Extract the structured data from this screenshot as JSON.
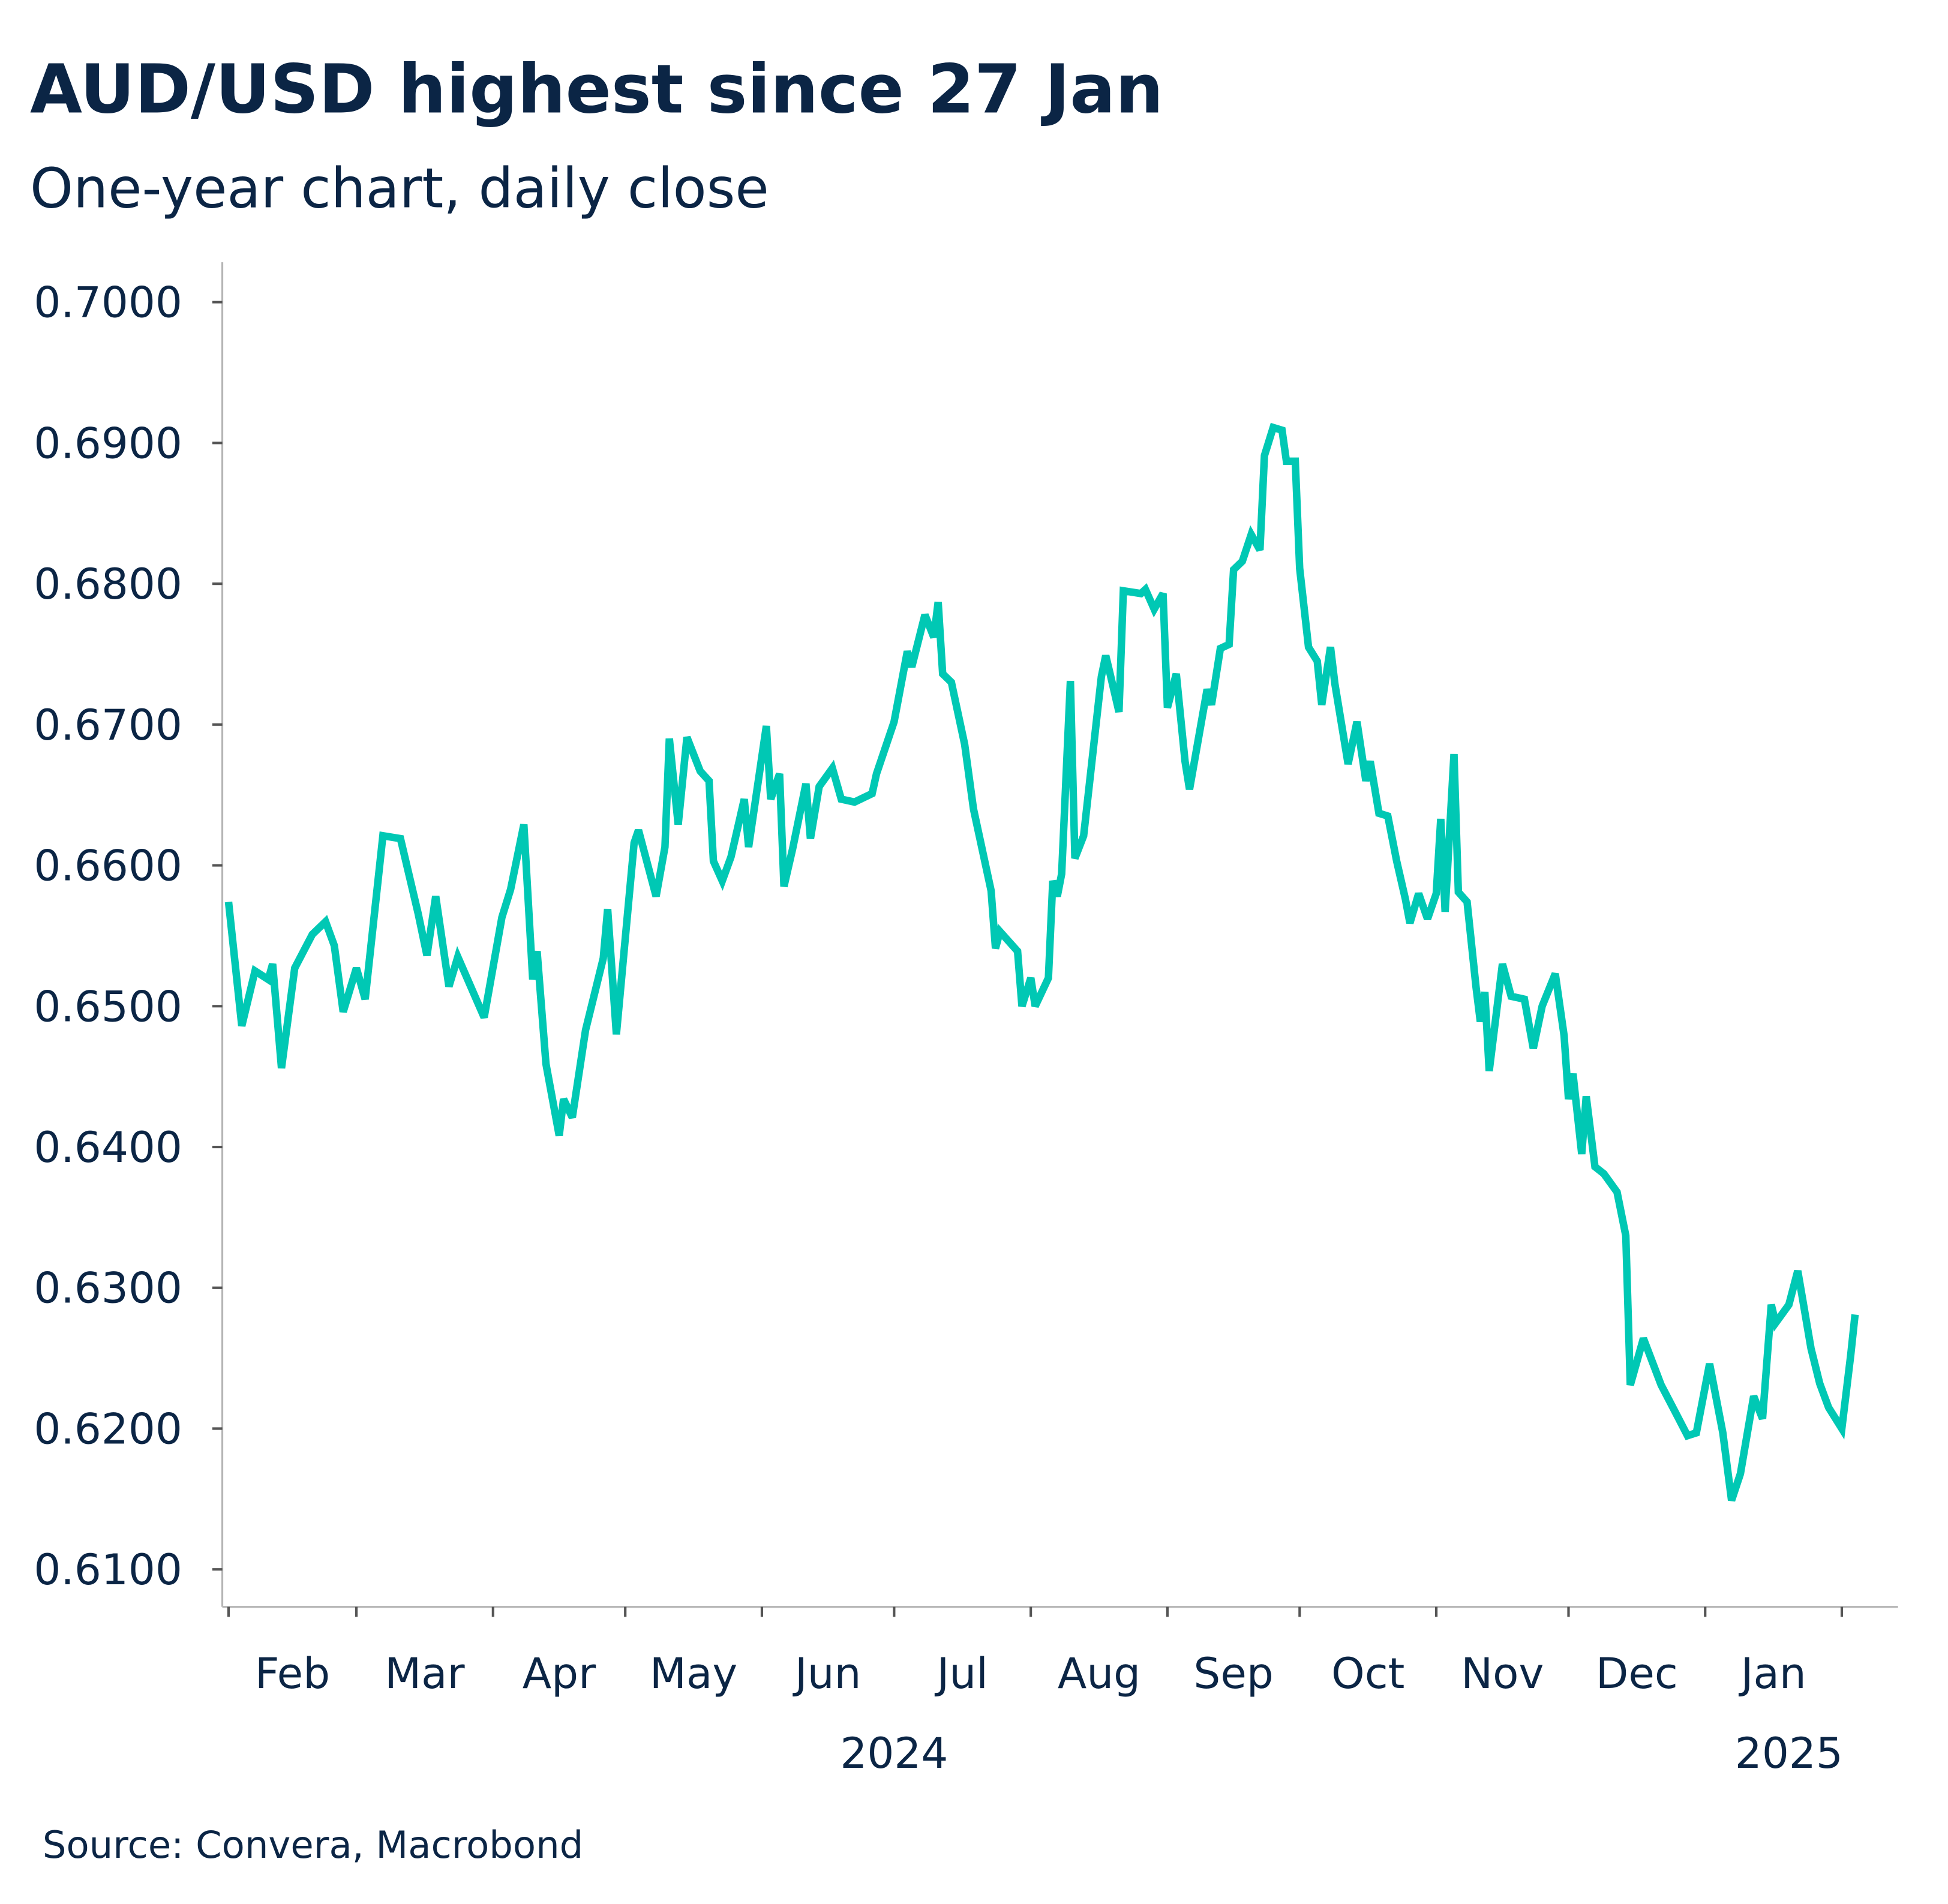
{
  "title": "AUD/USD highest since 27 Jan",
  "subtitle": "One-year chart, daily close",
  "source": "Source: Convera, Macrobond",
  "colors": {
    "line": "#00c8b4",
    "text": "#0b2545",
    "axis": "#b5b5b5"
  },
  "chart_data": {
    "type": "line",
    "title": "AUD/USD highest since 27 Jan",
    "subtitle": "One-year chart, daily close",
    "xlabel": "",
    "ylabel": "",
    "ylim": [
      0.61,
      0.7
    ],
    "xlim": [
      "2024-02-01",
      "2025-02-04"
    ],
    "grid": false,
    "legend": "none",
    "y_ticks": [
      "0.7000",
      "0.6900",
      "0.6800",
      "0.6700",
      "0.6600",
      "0.6500",
      "0.6400",
      "0.6300",
      "0.6200",
      "0.6100"
    ],
    "x_ticks": [
      {
        "label": "Feb",
        "start": "2024-02-01",
        "end": "2024-03-01"
      },
      {
        "label": "Mar",
        "start": "2024-03-01",
        "end": "2024-04-01"
      },
      {
        "label": "Apr",
        "start": "2024-04-01",
        "end": "2024-05-01"
      },
      {
        "label": "May",
        "start": "2024-05-01",
        "end": "2024-06-01"
      },
      {
        "label": "Jun",
        "start": "2024-06-01",
        "end": "2024-07-01"
      },
      {
        "label": "Jul",
        "start": "2024-07-01",
        "end": "2024-08-01"
      },
      {
        "label": "Aug",
        "start": "2024-08-01",
        "end": "2024-09-01"
      },
      {
        "label": "Sep",
        "start": "2024-09-01",
        "end": "2024-10-01"
      },
      {
        "label": "Oct",
        "start": "2024-10-01",
        "end": "2024-11-01"
      },
      {
        "label": "Nov",
        "start": "2024-11-01",
        "end": "2024-12-01"
      },
      {
        "label": "Dec",
        "start": "2024-12-01",
        "end": "2025-01-01"
      },
      {
        "label": "Jan",
        "start": "2025-01-01",
        "end": "2025-02-01"
      }
    ],
    "year_labels": [
      {
        "label": "2024",
        "center": "2024-07-01"
      },
      {
        "label": "2025",
        "center": "2025-01-20"
      }
    ],
    "series": [
      {
        "points": [
          [
            "2024-02-01",
            0.6574
          ],
          [
            "2024-02-04",
            0.6486
          ],
          [
            "2024-02-07",
            0.6525
          ],
          [
            "2024-02-10",
            0.6519
          ],
          [
            "2024-02-11",
            0.653
          ],
          [
            "2024-02-13",
            0.6456
          ],
          [
            "2024-02-16",
            0.6527
          ],
          [
            "2024-02-20",
            0.6551
          ],
          [
            "2024-02-23",
            0.656
          ],
          [
            "2024-02-25",
            0.6543
          ],
          [
            "2024-02-27",
            0.6496
          ],
          [
            "2024-03-01",
            0.6527
          ],
          [
            "2024-03-03",
            0.6505
          ],
          [
            "2024-03-07",
            0.6621
          ],
          [
            "2024-03-11",
            0.6619
          ],
          [
            "2024-03-15",
            0.6566
          ],
          [
            "2024-03-17",
            0.6536
          ],
          [
            "2024-03-19",
            0.6578
          ],
          [
            "2024-03-22",
            0.6514
          ],
          [
            "2024-03-24",
            0.6535
          ],
          [
            "2024-03-30",
            0.6492
          ],
          [
            "2024-04-03",
            0.6563
          ],
          [
            "2024-04-05",
            0.6583
          ],
          [
            "2024-04-08",
            0.6629
          ],
          [
            "2024-04-10",
            0.6519
          ],
          [
            "2024-04-11",
            0.6539
          ],
          [
            "2024-04-13",
            0.6459
          ],
          [
            "2024-04-16",
            0.6408
          ],
          [
            "2024-04-17",
            0.6434
          ],
          [
            "2024-04-19",
            0.6421
          ],
          [
            "2024-04-22",
            0.6483
          ],
          [
            "2024-04-26",
            0.6534
          ],
          [
            "2024-04-27",
            0.6569
          ],
          [
            "2024-04-29",
            0.648
          ],
          [
            "2024-05-03",
            0.6616
          ],
          [
            "2024-05-04",
            0.6625
          ],
          [
            "2024-05-08",
            0.6578
          ],
          [
            "2024-05-10",
            0.6613
          ],
          [
            "2024-05-11",
            0.669
          ],
          [
            "2024-05-13",
            0.6629
          ],
          [
            "2024-05-15",
            0.6691
          ],
          [
            "2024-05-18",
            0.6667
          ],
          [
            "2024-05-20",
            0.666
          ],
          [
            "2024-05-21",
            0.6603
          ],
          [
            "2024-05-23",
            0.6589
          ],
          [
            "2024-05-25",
            0.6606
          ],
          [
            "2024-05-28",
            0.6647
          ],
          [
            "2024-05-29",
            0.6613
          ],
          [
            "2024-06-02",
            0.6699
          ],
          [
            "2024-06-03",
            0.6647
          ],
          [
            "2024-06-05",
            0.6665
          ],
          [
            "2024-06-06",
            0.6585
          ],
          [
            "2024-06-08",
            0.6612
          ],
          [
            "2024-06-11",
            0.6658
          ],
          [
            "2024-06-12",
            0.6619
          ],
          [
            "2024-06-14",
            0.6656
          ],
          [
            "2024-06-17",
            0.6669
          ],
          [
            "2024-06-19",
            0.6647
          ],
          [
            "2024-06-22",
            0.6645
          ],
          [
            "2024-06-26",
            0.6651
          ],
          [
            "2024-06-27",
            0.6665
          ],
          [
            "2024-07-01",
            0.6702
          ],
          [
            "2024-07-04",
            0.6752
          ],
          [
            "2024-07-05",
            0.6741
          ],
          [
            "2024-07-08",
            0.6778
          ],
          [
            "2024-07-10",
            0.6762
          ],
          [
            "2024-07-11",
            0.6787
          ],
          [
            "2024-07-12",
            0.6736
          ],
          [
            "2024-07-14",
            0.673
          ],
          [
            "2024-07-17",
            0.6686
          ],
          [
            "2024-07-19",
            0.664
          ],
          [
            "2024-07-23",
            0.6582
          ],
          [
            "2024-07-24",
            0.6541
          ],
          [
            "2024-07-25",
            0.6553
          ],
          [
            "2024-07-29",
            0.6539
          ],
          [
            "2024-07-30",
            0.65
          ],
          [
            "2024-08-01",
            0.652
          ],
          [
            "2024-08-02",
            0.65
          ],
          [
            "2024-08-05",
            0.652
          ],
          [
            "2024-08-06",
            0.6589
          ],
          [
            "2024-08-07",
            0.6578
          ],
          [
            "2024-08-08",
            0.6594
          ],
          [
            "2024-08-10",
            0.6731
          ],
          [
            "2024-08-11",
            0.6605
          ],
          [
            "2024-08-13",
            0.6621
          ],
          [
            "2024-08-17",
            0.6734
          ],
          [
            "2024-08-18",
            0.6749
          ],
          [
            "2024-08-19",
            0.6736
          ],
          [
            "2024-08-21",
            0.6709
          ],
          [
            "2024-08-22",
            0.6795
          ],
          [
            "2024-08-26",
            0.6793
          ],
          [
            "2024-08-27",
            0.6796
          ],
          [
            "2024-08-29",
            0.6782
          ],
          [
            "2024-08-31",
            0.6793
          ],
          [
            "2024-09-01",
            0.6712
          ],
          [
            "2024-09-03",
            0.6736
          ],
          [
            "2024-09-05",
            0.6674
          ],
          [
            "2024-09-06",
            0.6654
          ],
          [
            "2024-09-10",
            0.6725
          ],
          [
            "2024-09-11",
            0.6714
          ],
          [
            "2024-09-13",
            0.6754
          ],
          [
            "2024-09-15",
            0.6757
          ],
          [
            "2024-09-16",
            0.681
          ],
          [
            "2024-09-18",
            0.6816
          ],
          [
            "2024-09-20",
            0.6835
          ],
          [
            "2024-09-22",
            0.6824
          ],
          [
            "2024-09-23",
            0.6891
          ],
          [
            "2024-09-25",
            0.6911
          ],
          [
            "2024-09-27",
            0.6909
          ],
          [
            "2024-09-28",
            0.6887
          ],
          [
            "2024-09-30",
            0.6887
          ],
          [
            "2024-10-01",
            0.6811
          ],
          [
            "2024-10-03",
            0.6755
          ],
          [
            "2024-10-05",
            0.6745
          ],
          [
            "2024-10-06",
            0.6714
          ],
          [
            "2024-10-08",
            0.6755
          ],
          [
            "2024-10-09",
            0.6729
          ],
          [
            "2024-10-12",
            0.6672
          ],
          [
            "2024-10-14",
            0.6702
          ],
          [
            "2024-10-16",
            0.666
          ],
          [
            "2024-10-17",
            0.6674
          ],
          [
            "2024-10-19",
            0.6637
          ],
          [
            "2024-10-21",
            0.6635
          ],
          [
            "2024-10-23",
            0.6603
          ],
          [
            "2024-10-25",
            0.6576
          ],
          [
            "2024-10-26",
            0.6559
          ],
          [
            "2024-10-28",
            0.658
          ],
          [
            "2024-10-30",
            0.6562
          ],
          [
            "2024-11-01",
            0.658
          ],
          [
            "2024-11-02",
            0.6633
          ],
          [
            "2024-11-03",
            0.6567
          ],
          [
            "2024-11-05",
            0.6679
          ],
          [
            "2024-11-06",
            0.6581
          ],
          [
            "2024-11-08",
            0.6574
          ],
          [
            "2024-11-10",
            0.6514
          ],
          [
            "2024-11-11",
            0.6489
          ],
          [
            "2024-11-12",
            0.651
          ],
          [
            "2024-11-13",
            0.6454
          ],
          [
            "2024-11-16",
            0.653
          ],
          [
            "2024-11-18",
            0.6507
          ],
          [
            "2024-11-21",
            0.6505
          ],
          [
            "2024-11-23",
            0.647
          ],
          [
            "2024-11-25",
            0.65
          ],
          [
            "2024-11-28",
            0.6523
          ],
          [
            "2024-11-30",
            0.6479
          ],
          [
            "2024-12-01",
            0.6434
          ],
          [
            "2024-12-02",
            0.6452
          ],
          [
            "2024-12-04",
            0.6395
          ],
          [
            "2024-12-05",
            0.6436
          ],
          [
            "2024-12-07",
            0.6386
          ],
          [
            "2024-12-09",
            0.6381
          ],
          [
            "2024-12-12",
            0.6368
          ],
          [
            "2024-12-14",
            0.6337
          ],
          [
            "2024-12-15",
            0.6231
          ],
          [
            "2024-12-18",
            0.6264
          ],
          [
            "2024-12-22",
            0.6231
          ],
          [
            "2024-12-25",
            0.6213
          ],
          [
            "2024-12-28",
            0.6195
          ],
          [
            "2024-12-30",
            0.6197
          ],
          [
            "2025-01-02",
            0.6246
          ],
          [
            "2025-01-05",
            0.6197
          ],
          [
            "2025-01-07",
            0.6149
          ],
          [
            "2025-01-09",
            0.6168
          ],
          [
            "2025-01-12",
            0.6223
          ],
          [
            "2025-01-14",
            0.6207
          ],
          [
            "2025-01-16",
            0.6288
          ],
          [
            "2025-01-17",
            0.6275
          ],
          [
            "2025-01-20",
            0.6288
          ],
          [
            "2025-01-22",
            0.6312
          ],
          [
            "2025-01-23",
            0.6294
          ],
          [
            "2025-01-25",
            0.6257
          ],
          [
            "2025-01-27",
            0.6232
          ],
          [
            "2025-01-29",
            0.6215
          ],
          [
            "2025-02-01",
            0.62
          ],
          [
            "2025-02-03",
            0.6252
          ],
          [
            "2025-02-04",
            0.6281
          ]
        ]
      }
    ]
  }
}
